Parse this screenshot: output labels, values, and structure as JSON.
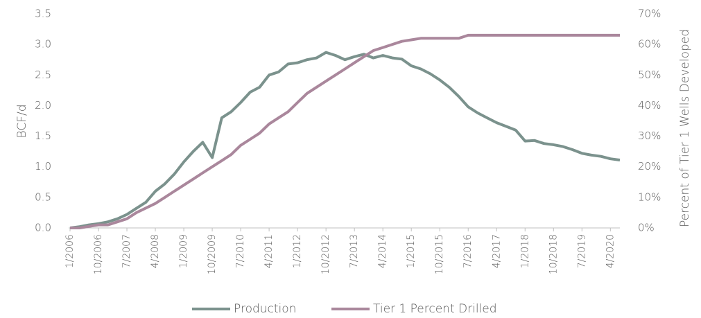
{
  "chart_data": {
    "type": "line",
    "y_label": "BCF/d",
    "y2_label": "Percent of Tier 1 Wells Developed",
    "categories": [
      "1/2006",
      null,
      null,
      "10/2006",
      null,
      null,
      "7/2007",
      null,
      null,
      "4/2008",
      null,
      null,
      "1/2009",
      null,
      null,
      "10/2009",
      null,
      null,
      "7/2010",
      null,
      null,
      "4/2011",
      null,
      null,
      "1/2012",
      null,
      null,
      "10/2012",
      null,
      null,
      "7/2013",
      null,
      null,
      "4/2014",
      null,
      null,
      "1/2015",
      null,
      null,
      "10/2015",
      null,
      null,
      "7/2016",
      null,
      null,
      "4/2017",
      null,
      null,
      "1/2018",
      null,
      null,
      "10/2018",
      null,
      null,
      "7/2019",
      null,
      null,
      "4/2020",
      null
    ],
    "series": [
      {
        "name": "Production",
        "color": "#7b928d",
        "axis": "y",
        "values": [
          0,
          0.02,
          0.05,
          0.07,
          0.1,
          0.15,
          0.22,
          0.32,
          0.42,
          0.6,
          0.72,
          0.88,
          1.08,
          1.25,
          1.4,
          1.15,
          1.8,
          1.9,
          2.05,
          2.22,
          2.3,
          2.5,
          2.55,
          2.68,
          2.7,
          2.75,
          2.78,
          2.87,
          2.82,
          2.75,
          2.8,
          2.84,
          2.78,
          2.82,
          2.78,
          2.76,
          2.65,
          2.6,
          2.52,
          2.42,
          2.3,
          2.15,
          1.98,
          1.88,
          1.8,
          1.72,
          1.66,
          1.6,
          1.42,
          1.43,
          1.38,
          1.36,
          1.33,
          1.28,
          1.22,
          1.19,
          1.17,
          1.13,
          1.11
        ]
      },
      {
        "name": "Tier 1 Percent Drilled",
        "color": "#aa879c",
        "axis": "y2",
        "values": [
          0,
          0,
          0.5,
          1,
          1,
          2,
          3,
          5,
          6.5,
          8,
          10,
          12,
          14,
          16,
          18,
          20,
          22,
          24,
          27,
          29,
          31,
          34,
          36,
          38,
          41,
          44,
          46,
          48,
          50,
          52,
          54,
          56,
          58,
          59,
          60,
          61,
          61.5,
          62,
          62,
          62,
          62,
          62,
          63,
          63,
          63,
          63,
          63,
          63,
          63,
          63,
          63,
          63,
          63,
          63,
          63,
          63,
          63,
          63,
          63
        ]
      }
    ],
    "ylim": [
      0,
      3.5
    ],
    "yticks": [
      {
        "value": 0,
        "label": "0.0"
      },
      0.5,
      {
        "value": 1,
        "label": "1.0"
      },
      1.5,
      {
        "value": 2,
        "label": "2.0"
      },
      2.5,
      {
        "value": 3,
        "label": "3.0"
      },
      3.5
    ],
    "y2lim": [
      0,
      70
    ],
    "y2ticks": [
      {
        "value": 0,
        "label": "0%"
      },
      {
        "value": 10,
        "label": "10%"
      },
      {
        "value": 20,
        "label": "20%"
      },
      {
        "value": 30,
        "label": "30%"
      },
      {
        "value": 40,
        "label": "40%"
      },
      {
        "value": 50,
        "label": "50%"
      },
      {
        "value": 60,
        "label": "60%"
      },
      {
        "value": 70,
        "label": "70%"
      }
    ],
    "grid": false,
    "legend": "bottom"
  }
}
